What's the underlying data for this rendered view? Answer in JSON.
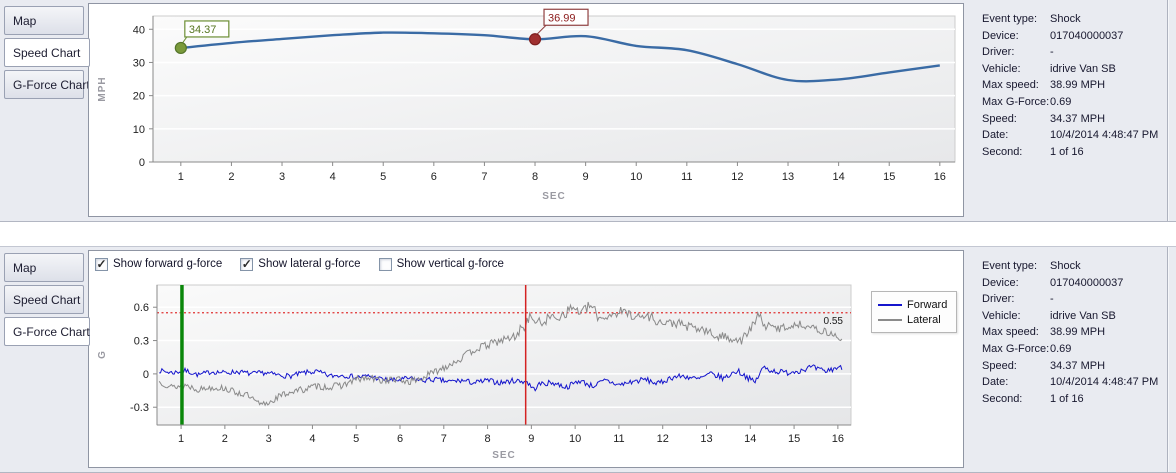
{
  "tabs": {
    "items": [
      "Map",
      "Speed Chart",
      "G-Force Chart"
    ],
    "sections": [
      {
        "selected": "Speed Chart"
      },
      {
        "selected": "G-Force Chart"
      }
    ]
  },
  "info_panel": {
    "rows": [
      {
        "label": "Event type:",
        "value": "Shock"
      },
      {
        "label": "Device:",
        "value": "017040000037"
      },
      {
        "label": "Driver:",
        "value": "-"
      },
      {
        "label": "Vehicle:",
        "value": "idrive Van SB"
      },
      {
        "label": "Max speed:",
        "value": "38.99 MPH"
      },
      {
        "label": "Max G-Force:",
        "value": "0.69"
      },
      {
        "label": "Speed:",
        "value": "34.37 MPH"
      },
      {
        "label": "Date:",
        "value": "10/4/2014 4:48:47 PM"
      },
      {
        "label": "Second:",
        "value": "1 of 16"
      }
    ]
  },
  "gforce_controls": {
    "check_icon": "✓",
    "checkboxes": [
      {
        "label": "Show forward g-force",
        "checked": true
      },
      {
        "label": "Show lateral g-force",
        "checked": true
      },
      {
        "label": "Show vertical g-force",
        "checked": false
      }
    ]
  },
  "chart_data": [
    {
      "type": "line",
      "title": "Speed Chart",
      "xlabel": "SEC",
      "ylabel": "MPH",
      "x": [
        1,
        2,
        3,
        4,
        5,
        6,
        7,
        8,
        9,
        10,
        11,
        12,
        13,
        14,
        15,
        16
      ],
      "values": [
        34.37,
        35.9,
        37.1,
        38.2,
        38.99,
        38.8,
        38.2,
        36.99,
        37.9,
        35.0,
        33.7,
        29.5,
        24.7,
        24.9,
        27.0,
        29.1
      ],
      "ylim": [
        0,
        44
      ],
      "yticks": [
        0,
        10,
        20,
        30,
        40
      ],
      "xticks": [
        1,
        2,
        3,
        4,
        5,
        6,
        7,
        8,
        9,
        10,
        11,
        12,
        13,
        14,
        15,
        16
      ],
      "line_color": "#3a6ba5",
      "markers": [
        {
          "x": 1,
          "y": 34.37,
          "label": "34.37",
          "fill": "#7a9a3b",
          "stroke": "#55752a",
          "text_color": "#55751f",
          "box_border": "#6d8f35"
        },
        {
          "x": 8,
          "y": 36.99,
          "label": "36.99",
          "fill": "#a03030",
          "stroke": "#7d1f1f",
          "text_color": "#8b1a1a",
          "box_border": "#904040"
        }
      ]
    },
    {
      "type": "line",
      "title": "G-Force Chart",
      "xlabel": "SEC",
      "ylabel": "G",
      "xlim": [
        0.45,
        16.3
      ],
      "ylim": [
        -0.46,
        0.8
      ],
      "yticks": [
        -0.3,
        0,
        0.3,
        0.6
      ],
      "xticks": [
        1,
        2,
        3,
        4,
        5,
        6,
        7,
        8,
        9,
        10,
        11,
        12,
        13,
        14,
        15,
        16
      ],
      "threshold": {
        "y": 0.55,
        "label": "0.55",
        "color": "#e03030"
      },
      "vlines": [
        {
          "x": 1.02,
          "color": "#0a870a",
          "width": 3.5
        },
        {
          "x": 8.87,
          "color": "#d42222",
          "width": 1.5
        }
      ],
      "legend_position": "right",
      "series": [
        {
          "name": "Forward",
          "color": "#1414cc",
          "seed": 7,
          "noise_amp": [
            [
              0.5,
              0.022
            ],
            [
              16.2,
              0.028
            ]
          ],
          "keypoints": [
            [
              0.5,
              0.03
            ],
            [
              0.8,
              0.01
            ],
            [
              1.1,
              0.03
            ],
            [
              1.4,
              -0.01
            ],
            [
              1.7,
              0.02
            ],
            [
              2.0,
              0.01
            ],
            [
              2.3,
              0.02
            ],
            [
              2.6,
              0.0
            ],
            [
              2.9,
              0.01
            ],
            [
              3.2,
              -0.01
            ],
            [
              3.5,
              -0.02
            ],
            [
              3.8,
              0.01
            ],
            [
              4.1,
              0.02
            ],
            [
              4.4,
              -0.02
            ],
            [
              4.7,
              -0.01
            ],
            [
              5.0,
              -0.03
            ],
            [
              5.3,
              -0.02
            ],
            [
              5.6,
              -0.05
            ],
            [
              5.9,
              -0.06
            ],
            [
              6.2,
              -0.04
            ],
            [
              6.5,
              -0.06
            ],
            [
              6.8,
              -0.05
            ],
            [
              7.1,
              -0.07
            ],
            [
              7.4,
              -0.06
            ],
            [
              7.7,
              -0.08
            ],
            [
              8.0,
              -0.06
            ],
            [
              8.3,
              -0.08
            ],
            [
              8.6,
              -0.06
            ],
            [
              8.9,
              -0.07
            ],
            [
              9.05,
              -0.14
            ],
            [
              9.2,
              -0.09
            ],
            [
              9.5,
              -0.08
            ],
            [
              9.8,
              -0.12
            ],
            [
              10.1,
              -0.06
            ],
            [
              10.4,
              -0.11
            ],
            [
              10.7,
              -0.06
            ],
            [
              11.0,
              -0.1
            ],
            [
              11.3,
              -0.07
            ],
            [
              11.6,
              -0.05
            ],
            [
              11.9,
              -0.09
            ],
            [
              12.2,
              -0.03
            ],
            [
              12.5,
              -0.02
            ],
            [
              12.8,
              -0.05
            ],
            [
              13.1,
              0.0
            ],
            [
              13.4,
              -0.04
            ],
            [
              13.7,
              0.03
            ],
            [
              13.9,
              -0.02
            ],
            [
              14.1,
              -0.08
            ],
            [
              14.3,
              0.06
            ],
            [
              14.5,
              0.03
            ],
            [
              14.8,
              0.01
            ],
            [
              15.1,
              0.03
            ],
            [
              15.4,
              0.06
            ],
            [
              15.7,
              0.02
            ],
            [
              16.0,
              0.06
            ],
            [
              16.15,
              0.04
            ]
          ]
        },
        {
          "name": "Lateral",
          "color": "#8a8a8a",
          "seed": 13,
          "noise_amp": [
            [
              0.5,
              0.028
            ],
            [
              8.0,
              0.035
            ],
            [
              9.0,
              0.05
            ],
            [
              12.0,
              0.045
            ],
            [
              14.5,
              0.04
            ],
            [
              16.2,
              0.03
            ]
          ],
          "keypoints": [
            [
              0.5,
              -0.07
            ],
            [
              0.8,
              -0.12
            ],
            [
              1.1,
              -0.1
            ],
            [
              1.4,
              -0.14
            ],
            [
              1.7,
              -0.12
            ],
            [
              2.0,
              -0.13
            ],
            [
              2.2,
              -0.16
            ],
            [
              2.5,
              -0.19
            ],
            [
              2.8,
              -0.28
            ],
            [
              3.0,
              -0.26
            ],
            [
              3.2,
              -0.21
            ],
            [
              3.5,
              -0.16
            ],
            [
              3.8,
              -0.14
            ],
            [
              4.1,
              -0.11
            ],
            [
              4.4,
              -0.12
            ],
            [
              4.7,
              -0.1
            ],
            [
              5.0,
              -0.05
            ],
            [
              5.3,
              -0.04
            ],
            [
              5.6,
              -0.06
            ],
            [
              5.9,
              -0.05
            ],
            [
              6.2,
              -0.07
            ],
            [
              6.5,
              -0.04
            ],
            [
              6.8,
              0.02
            ],
            [
              7.1,
              0.08
            ],
            [
              7.4,
              0.14
            ],
            [
              7.7,
              0.22
            ],
            [
              8.0,
              0.26
            ],
            [
              8.3,
              0.3
            ],
            [
              8.6,
              0.33
            ],
            [
              8.85,
              0.44
            ],
            [
              9.0,
              0.52
            ],
            [
              9.15,
              0.45
            ],
            [
              9.4,
              0.5
            ],
            [
              9.7,
              0.53
            ],
            [
              9.95,
              0.6
            ],
            [
              10.15,
              0.55
            ],
            [
              10.35,
              0.62
            ],
            [
              10.55,
              0.5
            ],
            [
              10.8,
              0.53
            ],
            [
              11.0,
              0.56
            ],
            [
              11.2,
              0.55
            ],
            [
              11.45,
              0.51
            ],
            [
              11.7,
              0.52
            ],
            [
              12.0,
              0.45
            ],
            [
              12.3,
              0.46
            ],
            [
              12.6,
              0.42
            ],
            [
              12.9,
              0.4
            ],
            [
              13.2,
              0.34
            ],
            [
              13.5,
              0.33
            ],
            [
              13.8,
              0.3
            ],
            [
              14.0,
              0.4
            ],
            [
              14.2,
              0.53
            ],
            [
              14.35,
              0.43
            ],
            [
              14.6,
              0.41
            ],
            [
              14.9,
              0.43
            ],
            [
              15.2,
              0.45
            ],
            [
              15.5,
              0.4
            ],
            [
              15.8,
              0.37
            ],
            [
              16.0,
              0.33
            ],
            [
              16.15,
              0.3
            ]
          ]
        }
      ]
    }
  ]
}
